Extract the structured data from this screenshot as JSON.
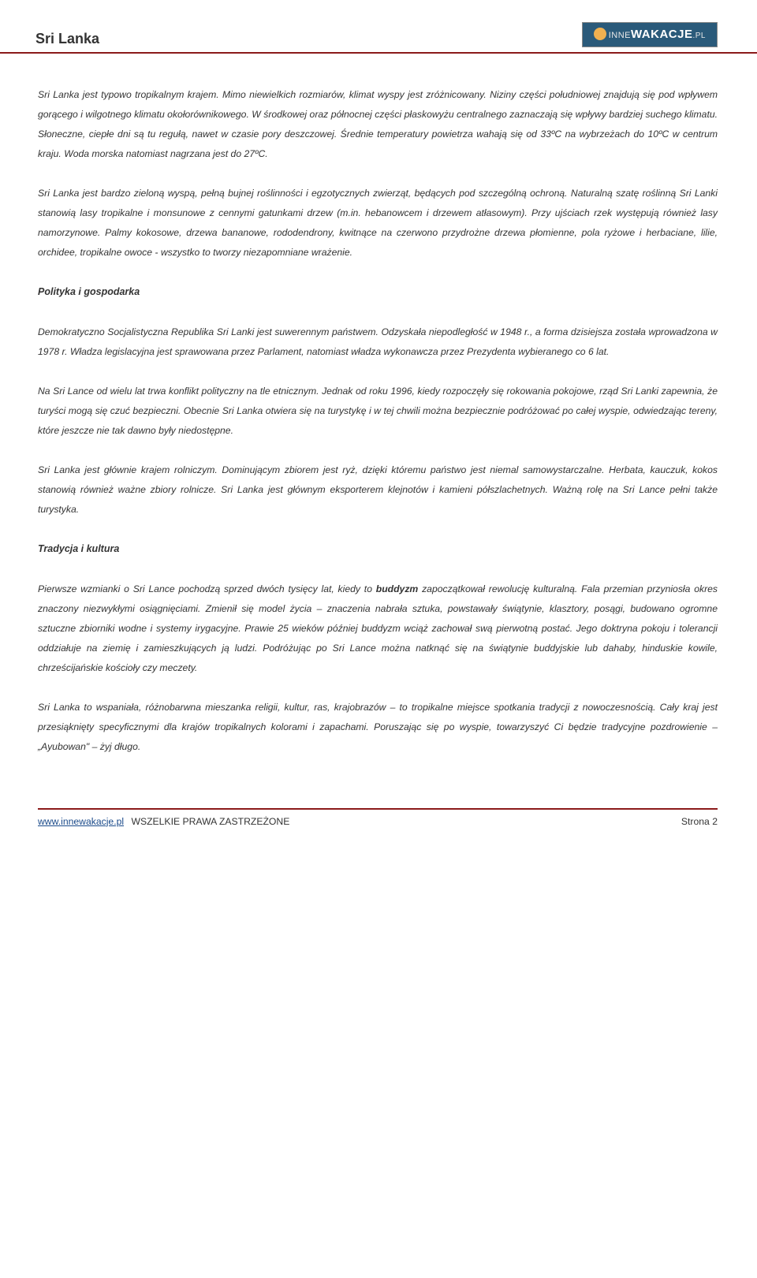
{
  "header": {
    "title": "Sri Lanka",
    "logo": {
      "prefix": "INNE",
      "main": "WAKACJE",
      "suffix": ".PL"
    }
  },
  "content": {
    "para1": "Sri Lanka jest typowo tropikalnym krajem. Mimo niewielkich rozmiarów, klimat wyspy jest zróżnicowany. Niziny części południowej znajdują się pod wpływem gorącego i wilgotnego klimatu okołorównikowego. W środkowej oraz północnej części płaskowyżu centralnego zaznaczają się wpływy bardziej suchego klimatu. Słoneczne, ciepłe dni są tu regułą, nawet w czasie pory deszczowej. Średnie temperatury powietrza wahają się od 33ºC na wybrzeżach do 10ºC w centrum kraju. Woda morska natomiast nagrzana jest do 27ºC.",
    "para2": "Sri Lanka jest bardzo zieloną wyspą, pełną bujnej roślinności i egzotycznych zwierząt, będących pod szczególną ochroną. Naturalną szatę roślinną Sri Lanki stanowią lasy tropikalne i monsunowe z cennymi gatunkami drzew (m.in. hebanowcem i drzewem atłasowym). Przy ujściach rzek występują również lasy namorzynowe. Palmy kokosowe, drzewa bananowe, rododendrony, kwitnące na czerwono przydrożne drzewa płomienne, pola ryżowe i herbaciane, lilie, orchidee, tropikalne owoce - wszystko to tworzy niezapomniane wrażenie.",
    "heading1": "Polityka i gospodarka",
    "para3": "Demokratyczno Socjalistyczna Republika Sri Lanki jest suwerennym państwem. Odzyskała niepodległość w 1948 r., a forma dzisiejsza została wprowadzona w 1978 r. Władza legislacyjna jest sprawowana przez Parlament, natomiast władza wykonawcza przez Prezydenta wybieranego co 6 lat.",
    "para4": "Na Sri Lance od wielu lat trwa konflikt polityczny na tle etnicznym. Jednak od roku 1996, kiedy rozpoczęły się rokowania pokojowe, rząd Sri Lanki zapewnia, że turyści mogą się czuć bezpieczni. Obecnie Sri Lanka otwiera się na turystykę i w tej chwili można bezpiecznie podróżować po całej wyspie, odwiedzając tereny, które jeszcze nie tak dawno były niedostępne.",
    "para5": "Sri Lanka jest głównie krajem rolniczym. Dominującym zbiorem jest ryż, dzięki któremu państwo jest niemal samowystarczalne. Herbata, kauczuk, kokos stanowią również ważne zbiory rolnicze. Sri Lanka jest głównym eksporterem klejnotów i kamieni półszlachetnych. Ważną rolę na Sri Lance pełni także turystyka.",
    "heading2": "Tradycja i kultura",
    "para6a": "Pierwsze wzmianki o Sri Lance pochodzą sprzed dwóch tysięcy lat, kiedy to ",
    "para6b": "buddyzm",
    "para6c": " zapoczątkował rewolucję kulturalną. Fala przemian przyniosła okres znaczony niezwykłymi osiągnięciami. Zmienił się model życia – znaczenia nabrała sztuka, powstawały świątynie, klasztory, posągi, budowano ogromne sztuczne zbiorniki wodne i systemy irygacyjne. Prawie 25 wieków później buddyzm wciąż zachował swą pierwotną postać. Jego doktryna pokoju i tolerancji oddziałuje na ziemię i zamieszkujących ją ludzi. Podróżując po Sri Lance można natknąć się na świątynie buddyjskie lub dahaby, hinduskie kowile, chrześcijańskie kościoły czy meczety.",
    "para7": "Sri Lanka to wspaniała, różnobarwna mieszanka religii, kultur, ras, krajobrazów – to tropikalne miejsce spotkania tradycji z nowoczesnością. Cały kraj jest przesiąknięty specyficznymi dla krajów tropikalnych kolorami i zapachami. Poruszając się po wyspie, towarzyszyć Ci będzie tradycyjne pozdrowienie – „Ayubowan\" – żyj długo."
  },
  "footer": {
    "url": "www.innewakacje.pl",
    "rights": "WSZELKIE PRAWA ZASTRZEŻONE",
    "page": "Strona 2"
  },
  "colors": {
    "rule": "#8b1a1a",
    "logo_bg": "#2a5a7a",
    "link": "#1a4a8a",
    "text": "#333333"
  }
}
